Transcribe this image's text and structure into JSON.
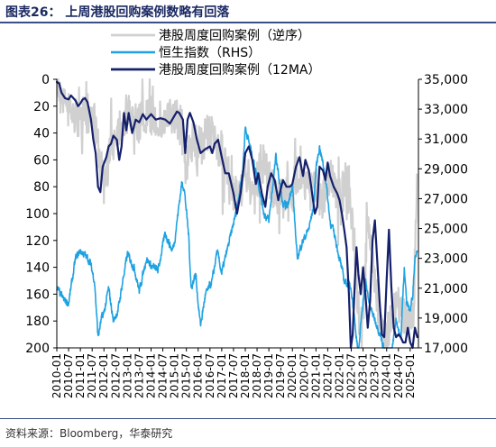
{
  "title": "图表26：   上周港股回购案例数略有回落",
  "source": "资料来源：Bloomberg，华泰研究",
  "chart_data": {
    "type": "line",
    "x_tick_labels": [
      "2010-01",
      "2010-07",
      "2011-01",
      "2011-07",
      "2012-01",
      "2012-07",
      "2013-01",
      "2013-07",
      "2014-01",
      "2014-07",
      "2015-01",
      "2015-07",
      "2016-01",
      "2016-07",
      "2017-01",
      "2017-07",
      "2018-01",
      "2018-07",
      "2019-01",
      "2019-07",
      "2020-01",
      "2020-07",
      "2021-01",
      "2021-07",
      "2022-01",
      "2022-07",
      "2023-01",
      "2023-07",
      "2024-01",
      "2024-07",
      "2025-01"
    ],
    "left_axis": {
      "reversed": true,
      "ylim": [
        0,
        200
      ],
      "ticks": [
        0,
        20,
        40,
        60,
        80,
        100,
        120,
        140,
        160,
        180,
        200
      ]
    },
    "right_axis": {
      "ylim": [
        17000,
        35000
      ],
      "ticks": [
        17000,
        19000,
        21000,
        23000,
        25000,
        27000,
        29000,
        31000,
        33000,
        35000
      ],
      "tick_labels": [
        "17,000",
        "19,000",
        "21,000",
        "23,000",
        "25,000",
        "27,000",
        "29,000",
        "31,000",
        "33,000",
        "35,000"
      ]
    },
    "legend": {
      "placement": "top-left"
    },
    "series": [
      {
        "name": "港股周度回购案例（逆序）",
        "axis": "left",
        "color": "#d0d0d0",
        "width": 2.2,
        "noise": 16,
        "values": [
          [
            2010.0,
            3
          ],
          [
            2010.2,
            8
          ],
          [
            2010.4,
            18
          ],
          [
            2010.6,
            25
          ],
          [
            2010.8,
            28
          ],
          [
            2011.0,
            30
          ],
          [
            2011.2,
            28
          ],
          [
            2011.4,
            24
          ],
          [
            2011.6,
            30
          ],
          [
            2011.8,
            60
          ],
          [
            2012.0,
            78
          ],
          [
            2012.2,
            60
          ],
          [
            2012.4,
            45
          ],
          [
            2012.6,
            35
          ],
          [
            2012.8,
            30
          ],
          [
            2013.0,
            27
          ],
          [
            2013.5,
            33
          ],
          [
            2014.0,
            28
          ],
          [
            2014.5,
            32
          ],
          [
            2015.0,
            28
          ],
          [
            2015.3,
            36
          ],
          [
            2015.5,
            70
          ],
          [
            2015.7,
            45
          ],
          [
            2016.0,
            52
          ],
          [
            2016.3,
            42
          ],
          [
            2016.7,
            45
          ],
          [
            2017.0,
            55
          ],
          [
            2017.5,
            90
          ],
          [
            2017.8,
            82
          ],
          [
            2018.0,
            70
          ],
          [
            2018.4,
            85
          ],
          [
            2018.7,
            60
          ],
          [
            2019.0,
            75
          ],
          [
            2019.4,
            90
          ],
          [
            2019.6,
            90
          ],
          [
            2019.8,
            75
          ],
          [
            2020.0,
            85
          ],
          [
            2020.3,
            65
          ],
          [
            2020.6,
            80
          ],
          [
            2020.8,
            85
          ],
          [
            2021.0,
            75
          ],
          [
            2021.3,
            95
          ],
          [
            2021.5,
            70
          ],
          [
            2021.8,
            78
          ],
          [
            2022.0,
            90
          ],
          [
            2022.3,
            75
          ],
          [
            2022.6,
            115
          ],
          [
            2022.8,
            170
          ],
          [
            2022.95,
            185
          ],
          [
            2023.2,
            105
          ],
          [
            2023.5,
            155
          ],
          [
            2023.8,
            185
          ],
          [
            2024.0,
            195
          ],
          [
            2024.3,
            165
          ],
          [
            2024.5,
            170
          ],
          [
            2024.8,
            175
          ],
          [
            2025.0,
            180
          ],
          [
            2025.15,
            170
          ],
          [
            2025.3,
            60
          ]
        ]
      },
      {
        "name": "恒生指数（RHS）",
        "axis": "right",
        "color": "#1fa2e2",
        "width": 1.6,
        "noise": 450,
        "values": [
          [
            2010.0,
            21000
          ],
          [
            2010.3,
            20200
          ],
          [
            2010.5,
            20000
          ],
          [
            2010.8,
            23000
          ],
          [
            2011.0,
            23500
          ],
          [
            2011.2,
            23200
          ],
          [
            2011.4,
            22800
          ],
          [
            2011.6,
            21500
          ],
          [
            2011.75,
            17700
          ],
          [
            2011.9,
            19000
          ],
          [
            2012.0,
            19300
          ],
          [
            2012.2,
            21000
          ],
          [
            2012.4,
            18800
          ],
          [
            2012.6,
            19500
          ],
          [
            2012.8,
            21500
          ],
          [
            2013.0,
            23300
          ],
          [
            2013.3,
            22300
          ],
          [
            2013.5,
            20800
          ],
          [
            2013.8,
            23000
          ],
          [
            2014.0,
            22500
          ],
          [
            2014.3,
            22200
          ],
          [
            2014.6,
            24700
          ],
          [
            2014.9,
            23500
          ],
          [
            2015.0,
            24200
          ],
          [
            2015.3,
            28000
          ],
          [
            2015.4,
            27800
          ],
          [
            2015.6,
            24500
          ],
          [
            2015.7,
            21000
          ],
          [
            2015.9,
            22000
          ],
          [
            2016.0,
            20000
          ],
          [
            2016.1,
            18500
          ],
          [
            2016.3,
            20500
          ],
          [
            2016.6,
            21500
          ],
          [
            2016.8,
            23500
          ],
          [
            2017.0,
            22000
          ],
          [
            2017.3,
            24000
          ],
          [
            2017.6,
            26000
          ],
          [
            2017.9,
            29000
          ],
          [
            2018.0,
            31800
          ],
          [
            2018.2,
            30500
          ],
          [
            2018.5,
            28500
          ],
          [
            2018.8,
            26000
          ],
          [
            2019.0,
            25500
          ],
          [
            2019.3,
            29800
          ],
          [
            2019.6,
            26500
          ],
          [
            2019.8,
            26500
          ],
          [
            2020.0,
            28000
          ],
          [
            2020.2,
            23000
          ],
          [
            2020.4,
            24000
          ],
          [
            2020.7,
            25000
          ],
          [
            2020.9,
            26500
          ],
          [
            2021.0,
            29000
          ],
          [
            2021.15,
            30500
          ],
          [
            2021.4,
            28500
          ],
          [
            2021.6,
            25500
          ],
          [
            2021.8,
            24500
          ],
          [
            2022.0,
            23000
          ],
          [
            2022.2,
            21500
          ],
          [
            2022.5,
            21000
          ],
          [
            2022.8,
            16500
          ],
          [
            2022.95,
            19500
          ],
          [
            2023.1,
            21500
          ],
          [
            2023.3,
            19700
          ],
          [
            2023.6,
            18500
          ],
          [
            2023.8,
            17500
          ],
          [
            2024.0,
            16000
          ],
          [
            2024.2,
            16500
          ],
          [
            2024.4,
            19000
          ],
          [
            2024.6,
            17500
          ],
          [
            2024.75,
            22500
          ],
          [
            2024.85,
            20000
          ],
          [
            2025.0,
            19500
          ],
          [
            2025.1,
            20500
          ],
          [
            2025.2,
            23000
          ],
          [
            2025.3,
            23800
          ]
        ]
      },
      {
        "name": "港股周度回购案例（12MA）",
        "axis": "left",
        "color": "#15206b",
        "width": 2.2,
        "noise": 0,
        "values": [
          [
            2010.0,
            2
          ],
          [
            2010.1,
            3
          ],
          [
            2010.2,
            10
          ],
          [
            2010.35,
            14
          ],
          [
            2010.5,
            15
          ],
          [
            2010.6,
            12
          ],
          [
            2010.8,
            16
          ],
          [
            2010.9,
            20
          ],
          [
            2011.0,
            18
          ],
          [
            2011.1,
            15
          ],
          [
            2011.2,
            14
          ],
          [
            2011.3,
            17
          ],
          [
            2011.45,
            30
          ],
          [
            2011.55,
            45
          ],
          [
            2011.65,
            55
          ],
          [
            2011.75,
            80
          ],
          [
            2011.85,
            84
          ],
          [
            2011.95,
            65
          ],
          [
            2012.1,
            58
          ],
          [
            2012.2,
            50
          ],
          [
            2012.3,
            48
          ],
          [
            2012.4,
            42
          ],
          [
            2012.55,
            45
          ],
          [
            2012.65,
            60
          ],
          [
            2012.75,
            50
          ],
          [
            2012.85,
            25
          ],
          [
            2012.95,
            38
          ],
          [
            2013.05,
            25
          ],
          [
            2013.2,
            40
          ],
          [
            2013.35,
            30
          ],
          [
            2013.5,
            32
          ],
          [
            2013.65,
            26
          ],
          [
            2013.8,
            30
          ],
          [
            2014.0,
            26
          ],
          [
            2014.2,
            30
          ],
          [
            2014.4,
            29
          ],
          [
            2014.6,
            30
          ],
          [
            2014.8,
            33
          ],
          [
            2015.0,
            27
          ],
          [
            2015.1,
            24
          ],
          [
            2015.2,
            25
          ],
          [
            2015.35,
            30
          ],
          [
            2015.45,
            55
          ],
          [
            2015.55,
            30
          ],
          [
            2015.65,
            25
          ],
          [
            2015.8,
            32
          ],
          [
            2015.95,
            45
          ],
          [
            2016.1,
            55
          ],
          [
            2016.3,
            52
          ],
          [
            2016.5,
            50
          ],
          [
            2016.6,
            55
          ],
          [
            2016.7,
            48
          ],
          [
            2016.85,
            45
          ],
          [
            2017.0,
            58
          ],
          [
            2017.15,
            70
          ],
          [
            2017.3,
            70
          ],
          [
            2017.5,
            85
          ],
          [
            2017.65,
            100
          ],
          [
            2017.8,
            85
          ],
          [
            2017.9,
            70
          ],
          [
            2018.0,
            55
          ],
          [
            2018.15,
            50
          ],
          [
            2018.3,
            60
          ],
          [
            2018.45,
            78
          ],
          [
            2018.55,
            70
          ],
          [
            2018.7,
            85
          ],
          [
            2018.85,
            95
          ],
          [
            2018.95,
            80
          ],
          [
            2019.1,
            70
          ],
          [
            2019.25,
            75
          ],
          [
            2019.4,
            90
          ],
          [
            2019.5,
            82
          ],
          [
            2019.6,
            75
          ],
          [
            2019.75,
            80
          ],
          [
            2019.9,
            80
          ],
          [
            2020.0,
            78
          ],
          [
            2020.15,
            65
          ],
          [
            2020.3,
            58
          ],
          [
            2020.45,
            72
          ],
          [
            2020.55,
            60
          ],
          [
            2020.7,
            68
          ],
          [
            2020.8,
            80
          ],
          [
            2020.95,
            100
          ],
          [
            2021.05,
            95
          ],
          [
            2021.15,
            65
          ],
          [
            2021.3,
            68
          ],
          [
            2021.4,
            75
          ],
          [
            2021.5,
            62
          ],
          [
            2021.6,
            72
          ],
          [
            2021.75,
            80
          ],
          [
            2021.9,
            85
          ],
          [
            2022.0,
            90
          ],
          [
            2022.1,
            100
          ],
          [
            2022.2,
            112
          ],
          [
            2022.3,
            125
          ],
          [
            2022.4,
            160
          ],
          [
            2022.48,
            200
          ],
          [
            2022.56,
            190
          ],
          [
            2022.64,
            155
          ],
          [
            2022.72,
            125
          ],
          [
            2022.8,
            145
          ],
          [
            2022.9,
            160
          ],
          [
            2023.0,
            140
          ],
          [
            2023.1,
            160
          ],
          [
            2023.2,
            185
          ],
          [
            2023.3,
            165
          ],
          [
            2023.4,
            120
          ],
          [
            2023.5,
            105
          ],
          [
            2023.6,
            135
          ],
          [
            2023.7,
            165
          ],
          [
            2023.8,
            190
          ],
          [
            2023.9,
            192
          ],
          [
            2024.0,
            150
          ],
          [
            2024.1,
            112
          ],
          [
            2024.2,
            155
          ],
          [
            2024.3,
            185
          ],
          [
            2024.4,
            192
          ],
          [
            2024.5,
            190
          ],
          [
            2024.6,
            192
          ],
          [
            2024.7,
            196
          ],
          [
            2024.8,
            196
          ],
          [
            2024.9,
            185
          ],
          [
            2025.0,
            196
          ],
          [
            2025.1,
            200
          ],
          [
            2025.2,
            185
          ],
          [
            2025.3,
            192
          ]
        ]
      }
    ]
  }
}
